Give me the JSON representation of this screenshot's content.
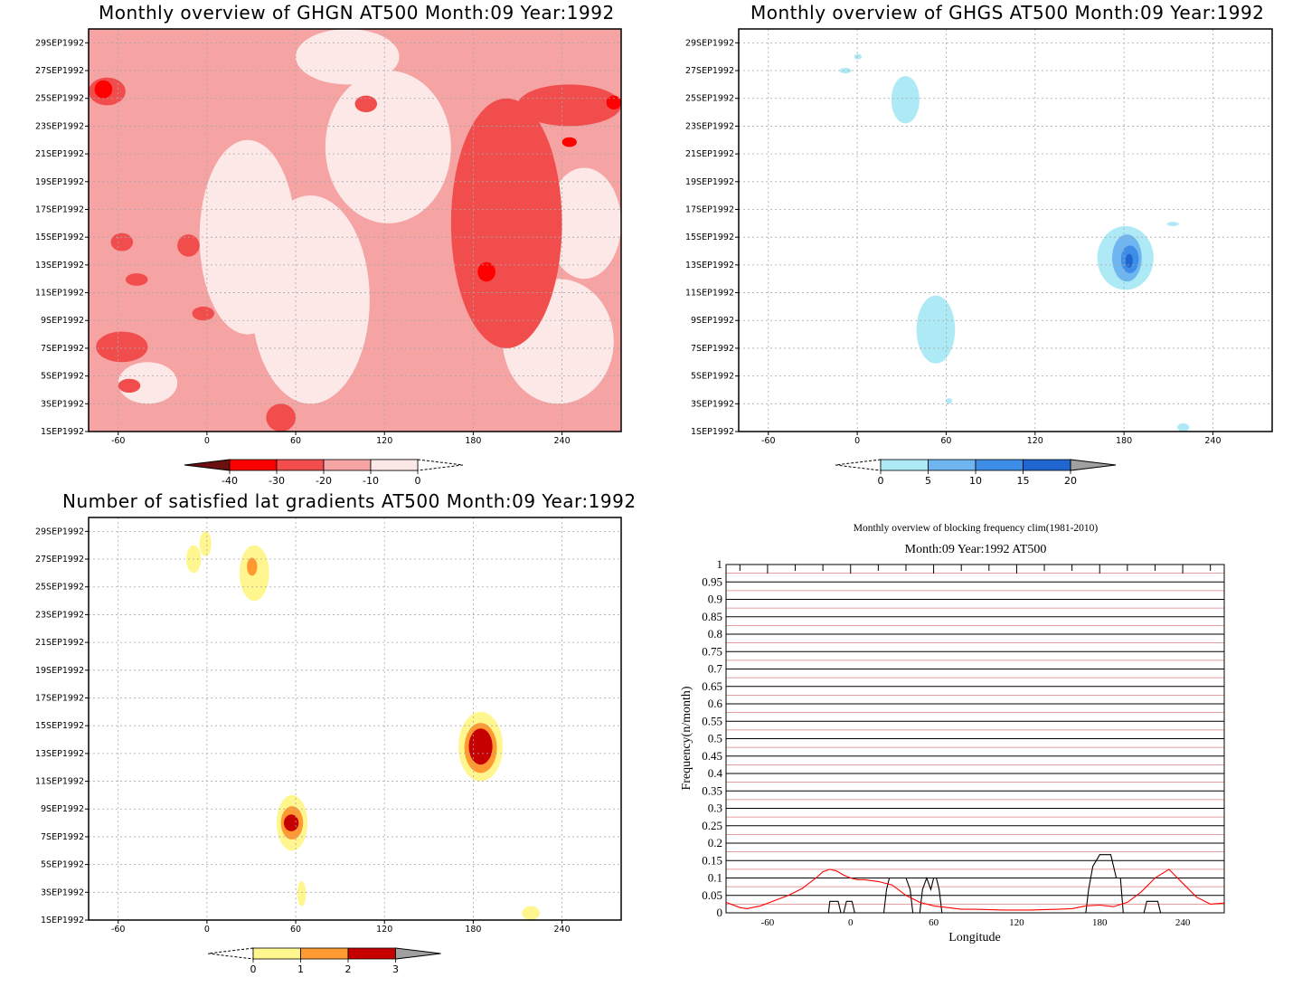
{
  "chart_data": [
    {
      "type": "heatmap",
      "title": "Monthly overview of GHGN AT500 Month:09 Year:1992",
      "x_ticks": [
        "-60",
        "0",
        "60",
        "120",
        "180",
        "240"
      ],
      "x_tick_values": [
        -60,
        0,
        60,
        120,
        180,
        240
      ],
      "xlim": [
        -80,
        280
      ],
      "y_ticks": [
        "1SEP1992",
        "3SEP1992",
        "5SEP1992",
        "7SEP1992",
        "9SEP1992",
        "11SEP1992",
        "13SEP1992",
        "15SEP1992",
        "17SEP1992",
        "19SEP1992",
        "21SEP1992",
        "23SEP1992",
        "25SEP1992",
        "27SEP1992",
        "29SEP1992"
      ],
      "ylim": [
        "1SEP1992",
        "30SEP1992"
      ],
      "grid": true,
      "colorbar": {
        "labels": [
          "-40",
          "-30",
          "-20",
          "-10",
          "0"
        ],
        "levels": [
          -40,
          -30,
          -20,
          -10,
          0
        ],
        "colors": [
          "#6b0f0f",
          "#ff0000",
          "#f24d4d",
          "#f5a3a3",
          "#fde8e8"
        ]
      },
      "regions": [
        {
          "level": -20,
          "lon": [
            -80,
            -55
          ],
          "day": [
            24.5,
            26.5
          ]
        },
        {
          "level": -20,
          "lon": [
            100,
            115
          ],
          "day": [
            24.0,
            25.2
          ]
        },
        {
          "level": -20,
          "lon": [
            -65,
            -50
          ],
          "day": [
            14.0,
            15.3
          ]
        },
        {
          "level": -20,
          "lon": [
            -20,
            -5
          ],
          "day": [
            13.6,
            15.2
          ]
        },
        {
          "level": -20,
          "lon": [
            -55,
            -40
          ],
          "day": [
            11.5,
            12.4
          ]
        },
        {
          "level": -20,
          "lon": [
            -10,
            5
          ],
          "day": [
            9.0,
            10.0
          ]
        },
        {
          "level": -20,
          "lon": [
            -75,
            -40
          ],
          "day": [
            6.0,
            8.2
          ]
        },
        {
          "level": -20,
          "lon": [
            -60,
            -45
          ],
          "day": [
            3.8,
            4.8
          ]
        },
        {
          "level": -20,
          "lon": [
            40,
            60
          ],
          "day": [
            1.0,
            3.0
          ]
        },
        {
          "level": -20,
          "lon": [
            165,
            240
          ],
          "day": [
            7.0,
            25.0
          ]
        },
        {
          "level": -20,
          "lon": [
            210,
            280
          ],
          "day": [
            23.0,
            26.0
          ]
        },
        {
          "level": -30,
          "lon": [
            183,
            195
          ],
          "day": [
            11.8,
            13.2
          ]
        },
        {
          "level": -30,
          "lon": [
            -76,
            -64
          ],
          "day": [
            25.0,
            26.3
          ]
        },
        {
          "level": -30,
          "lon": [
            240,
            250
          ],
          "day": [
            21.5,
            22.2
          ]
        },
        {
          "level": -30,
          "lon": [
            270,
            280
          ],
          "day": [
            24.2,
            25.2
          ]
        }
      ]
    },
    {
      "type": "heatmap",
      "title": "Monthly overview of GHGS AT500 Month:09 Year:1992",
      "x_ticks": [
        "-60",
        "0",
        "60",
        "120",
        "180",
        "240"
      ],
      "x_tick_values": [
        -60,
        0,
        60,
        120,
        180,
        240
      ],
      "xlim": [
        -80,
        280
      ],
      "y_ticks": [
        "1SEP1992",
        "3SEP1992",
        "5SEP1992",
        "7SEP1992",
        "9SEP1992",
        "11SEP1992",
        "13SEP1992",
        "15SEP1992",
        "17SEP1992",
        "19SEP1992",
        "21SEP1992",
        "23SEP1992",
        "25SEP1992",
        "27SEP1992",
        "29SEP1992"
      ],
      "ylim": [
        "1SEP1992",
        "30SEP1992"
      ],
      "grid": true,
      "colorbar": {
        "labels": [
          "0",
          "5",
          "10",
          "15",
          "20"
        ],
        "levels": [
          0,
          5,
          10,
          15,
          20
        ],
        "colors": [
          "#aeeaf6",
          "#6fb6f0",
          "#3e8ee8",
          "#1f66d0",
          "#a0a0a0"
        ]
      },
      "regions": [
        {
          "level": 0,
          "lon": [
            -12,
            -4
          ],
          "day": [
            26.8,
            27.2
          ]
        },
        {
          "level": 0,
          "lon": [
            -2,
            3
          ],
          "day": [
            27.8,
            28.2
          ]
        },
        {
          "level": 0,
          "lon": [
            23,
            42
          ],
          "day": [
            23.2,
            26.6
          ]
        },
        {
          "level": 0,
          "lon": [
            40,
            66
          ],
          "day": [
            5.9,
            10.8
          ]
        },
        {
          "level": 0,
          "lon": [
            60,
            64
          ],
          "day": [
            3.0,
            3.4
          ]
        },
        {
          "level": 0,
          "lon": [
            162,
            200
          ],
          "day": [
            11.2,
            15.8
          ]
        },
        {
          "level": 5,
          "lon": [
            172,
            192
          ],
          "day": [
            11.8,
            15.2
          ]
        },
        {
          "level": 10,
          "lon": [
            178,
            190
          ],
          "day": [
            12.4,
            14.4
          ]
        },
        {
          "level": 15,
          "lon": [
            181,
            186
          ],
          "day": [
            12.8,
            13.8
          ]
        },
        {
          "level": 0,
          "lon": [
            209,
            217
          ],
          "day": [
            15.8,
            16.1
          ]
        },
        {
          "level": 0,
          "lon": [
            216,
            224
          ],
          "day": [
            1.0,
            1.6
          ]
        }
      ]
    },
    {
      "type": "heatmap",
      "title": "Number of satisfied lat gradients AT500 Month:09 Year:1992",
      "x_ticks": [
        "-60",
        "0",
        "60",
        "120",
        "180",
        "240"
      ],
      "x_tick_values": [
        -60,
        0,
        60,
        120,
        180,
        240
      ],
      "xlim": [
        -80,
        280
      ],
      "y_ticks": [
        "1SEP1992",
        "3SEP1992",
        "5SEP1992",
        "7SEP1992",
        "9SEP1992",
        "11SEP1992",
        "13SEP1992",
        "15SEP1992",
        "17SEP1992",
        "19SEP1992",
        "21SEP1992",
        "23SEP1992",
        "25SEP1992",
        "27SEP1992",
        "29SEP1992"
      ],
      "ylim": [
        "1SEP1992",
        "30SEP1992"
      ],
      "grid": true,
      "colorbar": {
        "labels": [
          "0",
          "1",
          "2",
          "3"
        ],
        "levels": [
          0,
          1,
          2,
          3
        ],
        "colors": [
          "#fff68f",
          "#ff9a33",
          "#c60000",
          "#a0a0a0"
        ]
      },
      "regions": [
        {
          "level": 0,
          "lon": [
            -14,
            -4
          ],
          "day": [
            26.0,
            28.0
          ]
        },
        {
          "level": 0,
          "lon": [
            -5,
            3
          ],
          "day": [
            27.2,
            29.0
          ]
        },
        {
          "level": 0,
          "lon": [
            22,
            42
          ],
          "day": [
            24.0,
            28.0
          ]
        },
        {
          "level": 1,
          "lon": [
            27,
            34
          ],
          "day": [
            25.8,
            27.1
          ]
        },
        {
          "level": 0,
          "lon": [
            47,
            68
          ],
          "day": [
            6.0,
            10.0
          ]
        },
        {
          "level": 1,
          "lon": [
            50,
            65
          ],
          "day": [
            6.8,
            9.2
          ]
        },
        {
          "level": 2,
          "lon": [
            52,
            62
          ],
          "day": [
            7.4,
            8.6
          ]
        },
        {
          "level": 0,
          "lon": [
            61,
            67
          ],
          "day": [
            2.0,
            3.8
          ]
        },
        {
          "level": 0,
          "lon": [
            170,
            200
          ],
          "day": [
            11.0,
            16.0
          ]
        },
        {
          "level": 1,
          "lon": [
            174,
            196
          ],
          "day": [
            11.6,
            15.2
          ]
        },
        {
          "level": 2,
          "lon": [
            177,
            193
          ],
          "day": [
            12.2,
            14.8
          ]
        },
        {
          "level": 0,
          "lon": [
            213,
            225
          ],
          "day": [
            1.0,
            2.0
          ]
        }
      ]
    },
    {
      "type": "line",
      "title": "Monthly overview of blocking frequency clim(1981-2010)",
      "subtitle": "Month:09 Year:1992  AT500",
      "xlabel": "Longitude",
      "ylabel": "Frequency(n/month)",
      "xlim": [
        -90,
        270
      ],
      "ylim": [
        0,
        1
      ],
      "x_ticks": [
        "-60",
        "0",
        "60",
        "120",
        "180",
        "240"
      ],
      "x_tick_values": [
        -60,
        0,
        60,
        120,
        180,
        240
      ],
      "y_ticks": [
        "0",
        "0.05",
        "0.1",
        "0.15",
        "0.2",
        "0.25",
        "0.3",
        "0.35",
        "0.4",
        "0.45",
        "0.5",
        "0.55",
        "0.6",
        "0.65",
        "0.7",
        "0.75",
        "0.8",
        "0.85",
        "0.9",
        "0.95",
        "1"
      ],
      "y_tick_values": [
        0,
        0.05,
        0.1,
        0.15,
        0.2,
        0.25,
        0.3,
        0.35,
        0.4,
        0.45,
        0.5,
        0.55,
        0.6,
        0.65,
        0.7,
        0.75,
        0.8,
        0.85,
        0.9,
        0.95,
        1
      ],
      "gridlines": {
        "black_every": 0.05,
        "red_offset": 0.025
      },
      "series": [
        {
          "color": "#000000",
          "x": [
            -90,
            -16,
            -15,
            -13,
            -9,
            -7,
            -5,
            -3,
            -1,
            1,
            3,
            5,
            24,
            26,
            28,
            30,
            35,
            38,
            40,
            43,
            45,
            47,
            50,
            52,
            55,
            58,
            60,
            62,
            64,
            66,
            170,
            172,
            175,
            180,
            185,
            188,
            190,
            192,
            195,
            197,
            200,
            212,
            214,
            216,
            218,
            222,
            224,
            270
          ],
          "y": [
            0,
            0,
            0.033,
            0.033,
            0.033,
            0,
            0,
            0.033,
            0.033,
            0.033,
            0,
            0,
            0,
            0.067,
            0.1,
            0.1,
            0.1,
            0.1,
            0.1,
            0.067,
            0,
            0,
            0,
            0.067,
            0.1,
            0.067,
            0.1,
            0.1,
            0.067,
            0,
            0,
            0.067,
            0.133,
            0.167,
            0.167,
            0.167,
            0.133,
            0.1,
            0.1,
            0,
            0,
            0,
            0.033,
            0.033,
            0.033,
            0.033,
            0,
            0
          ]
        },
        {
          "color": "#ff0000",
          "x": [
            -90,
            -80,
            -75,
            -65,
            -55,
            -45,
            -35,
            -25,
            -20,
            -15,
            -10,
            -5,
            0,
            5,
            10,
            20,
            30,
            40,
            50,
            60,
            70,
            80,
            90,
            110,
            130,
            150,
            160,
            170,
            180,
            190,
            200,
            210,
            220,
            230,
            240,
            250,
            260,
            270
          ],
          "y": [
            0.03,
            0.015,
            0.012,
            0.02,
            0.035,
            0.05,
            0.07,
            0.1,
            0.118,
            0.125,
            0.12,
            0.108,
            0.1,
            0.095,
            0.095,
            0.09,
            0.08,
            0.05,
            0.03,
            0.02,
            0.015,
            0.01,
            0.01,
            0.008,
            0.008,
            0.01,
            0.012,
            0.02,
            0.022,
            0.018,
            0.03,
            0.06,
            0.1,
            0.125,
            0.085,
            0.045,
            0.025,
            0.028
          ]
        }
      ]
    }
  ]
}
